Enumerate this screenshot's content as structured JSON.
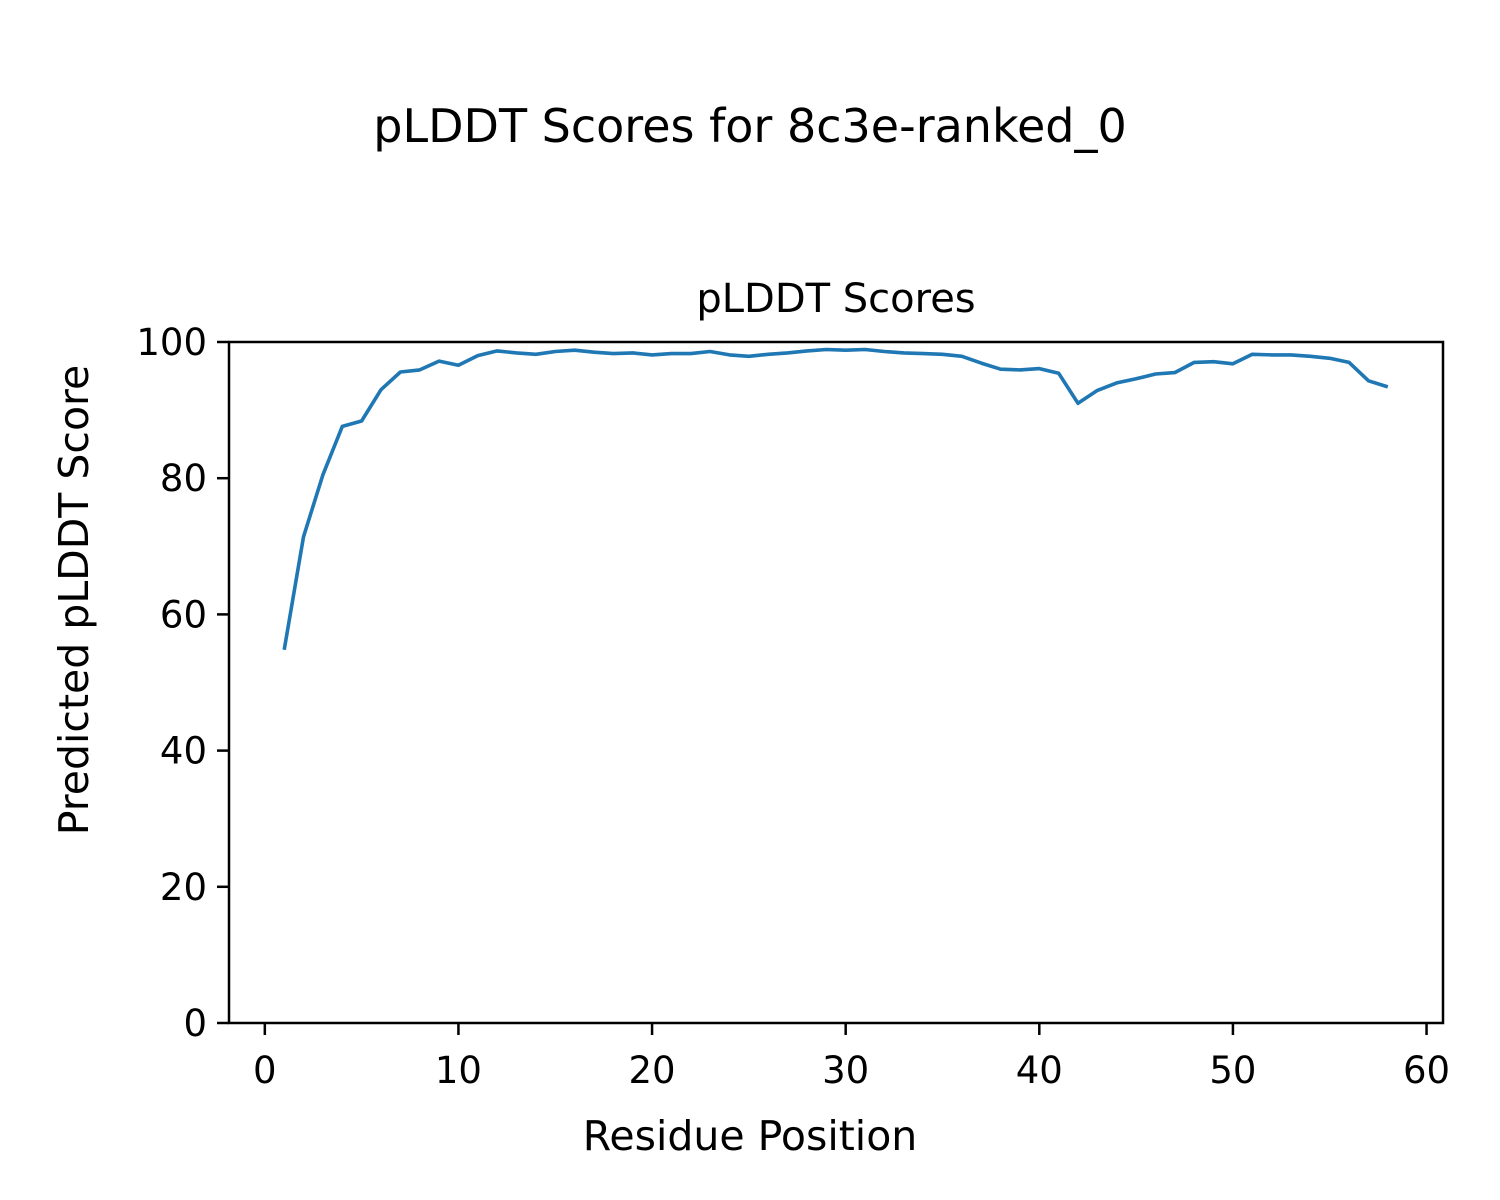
{
  "figure": {
    "suptitle": "pLDDT Scores for 8c3e-ranked_0"
  },
  "chart_data": {
    "type": "line",
    "title": "pLDDT Scores",
    "xlabel": "Residue Position",
    "ylabel": "Predicted pLDDT Score",
    "legend_position": "none",
    "grid": false,
    "line_color": "#1f77b4",
    "axis_color": "#000000",
    "xlim": [
      -1.85,
      60.85
    ],
    "ylim": [
      0,
      100
    ],
    "xticks": [
      0,
      10,
      20,
      30,
      40,
      50,
      60
    ],
    "yticks": [
      0,
      20,
      40,
      60,
      80,
      100
    ],
    "x": [
      1,
      2,
      3,
      4,
      5,
      6,
      7,
      8,
      9,
      10,
      11,
      12,
      13,
      14,
      15,
      16,
      17,
      18,
      19,
      20,
      21,
      22,
      23,
      24,
      25,
      26,
      27,
      28,
      29,
      30,
      31,
      32,
      33,
      34,
      35,
      36,
      37,
      38,
      39,
      40,
      41,
      42,
      43,
      44,
      45,
      46,
      47,
      48,
      49,
      50,
      51,
      52,
      53,
      54,
      55,
      56,
      57,
      58
    ],
    "values": [
      54.8,
      71.4,
      80.5,
      87.6,
      88.4,
      93.0,
      95.6,
      95.9,
      97.2,
      96.6,
      98.0,
      98.7,
      98.4,
      98.2,
      98.6,
      98.8,
      98.5,
      98.3,
      98.4,
      98.1,
      98.3,
      98.3,
      98.6,
      98.1,
      97.9,
      98.2,
      98.4,
      98.7,
      98.9,
      98.8,
      98.9,
      98.6,
      98.4,
      98.3,
      98.2,
      97.9,
      96.9,
      96.0,
      95.9,
      96.1,
      95.4,
      91.0,
      92.9,
      94.0,
      94.6,
      95.3,
      95.5,
      97.0,
      97.1,
      96.8,
      98.2,
      98.1,
      98.1,
      97.9,
      97.6,
      97.0,
      94.3,
      93.4
    ]
  }
}
